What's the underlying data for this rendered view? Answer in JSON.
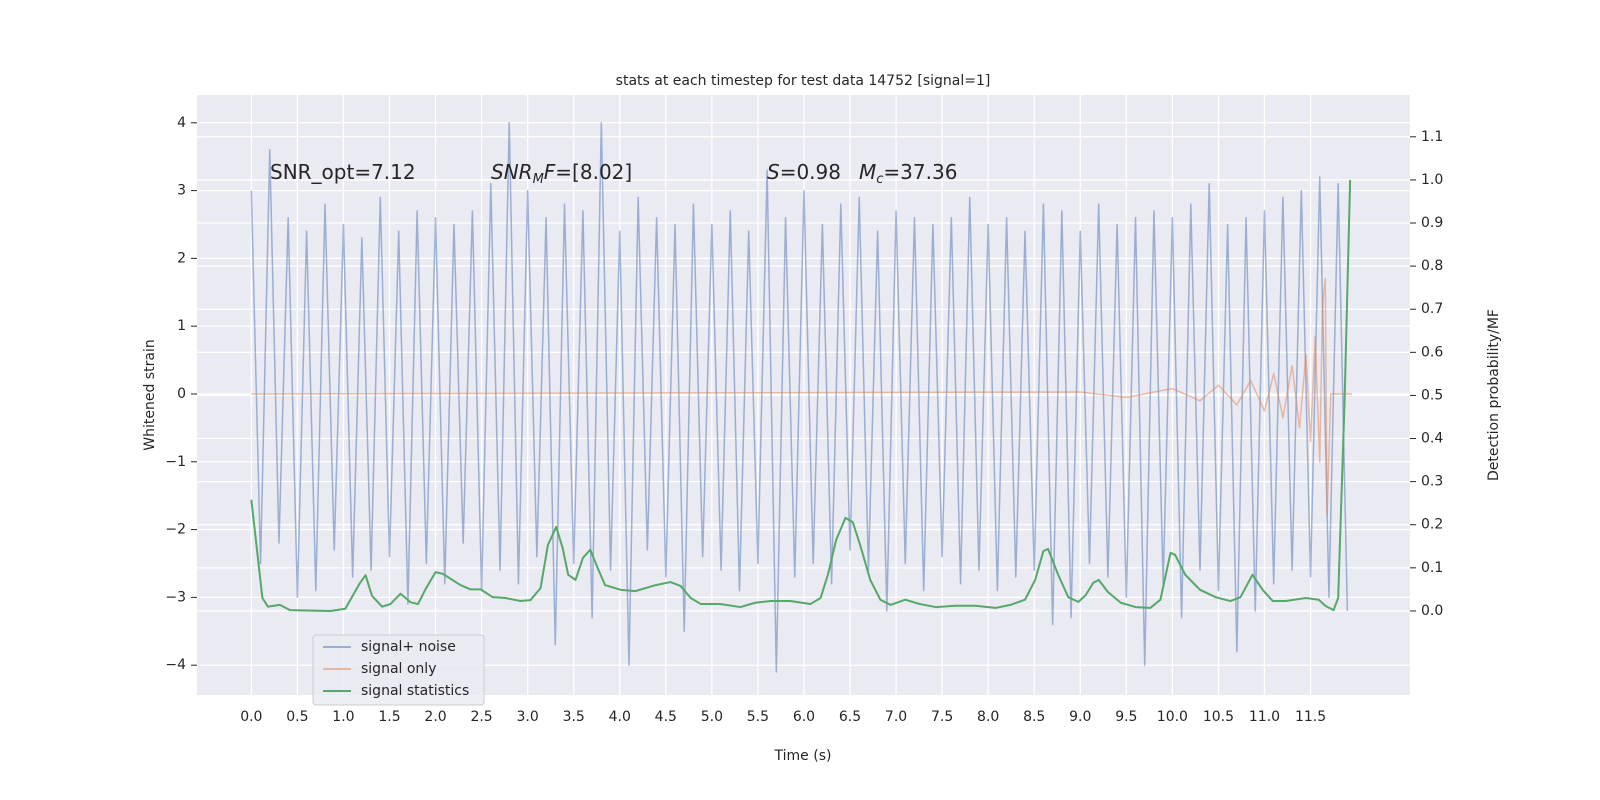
{
  "chart_data": {
    "type": "line",
    "title": "stats at each timestep for test data 14752 [signal=1]",
    "x_label": "Time (s)",
    "y_label": "Whitened strain",
    "y2_label": "Detection probability/MF",
    "grid": true,
    "legend": "lower left",
    "xlim": [
      -0.59,
      12.58
    ],
    "ylim": [
      -4.44,
      4.41
    ],
    "y2lim": [
      -0.195,
      1.197
    ],
    "xticks": [
      {
        "value": 0,
        "label": "0.0"
      },
      0.5,
      {
        "value": 1,
        "label": "1.0"
      },
      1.5,
      {
        "value": 2,
        "label": "2.0"
      },
      2.5,
      {
        "value": 3,
        "label": "3.0"
      },
      3.5,
      {
        "value": 4,
        "label": "4.0"
      },
      4.5,
      {
        "value": 5,
        "label": "5.0"
      },
      5.5,
      {
        "value": 6,
        "label": "6.0"
      },
      6.5,
      {
        "value": 7,
        "label": "7.0"
      },
      7.5,
      {
        "value": 8,
        "label": "8.0"
      },
      8.5,
      {
        "value": 9,
        "label": "9.0"
      },
      9.5,
      {
        "value": 10,
        "label": "10.0"
      },
      10.5,
      {
        "value": 11,
        "label": "11.0"
      },
      11.5
    ],
    "yticks": [
      {
        "value": -4,
        "label": "−4"
      },
      {
        "value": -3,
        "label": "−3"
      },
      {
        "value": -2,
        "label": "−2"
      },
      {
        "value": -1,
        "label": "−1"
      },
      0,
      1,
      2,
      3,
      4
    ],
    "y2ticks": [
      {
        "value": 0,
        "label": "0.0"
      },
      0.1,
      0.2,
      0.3,
      0.4,
      0.5,
      0.6,
      0.7,
      0.8,
      0.9,
      {
        "value": 1,
        "label": "1.0"
      },
      1.1
    ],
    "annotations": [
      [
        {
          "text": "SNR_opt=7.12"
        }
      ],
      [
        {
          "text": "SNR",
          "italic": true
        },
        {
          "text": "M",
          "italic": true,
          "sub": true
        },
        {
          "text": "F",
          "italic": true
        },
        {
          "text": "=[8.02]"
        }
      ],
      [
        {
          "text": "S",
          "italic": true
        },
        {
          "text": "=0.98"
        }
      ],
      [
        {
          "text": "M",
          "italic": true
        },
        {
          "text": "c",
          "italic": true,
          "sub": true
        },
        {
          "text": "=37.36"
        }
      ]
    ],
    "series": [
      {
        "name": "signal+ noise",
        "color": "#4c72b0",
        "opacity": 0.5,
        "x": [
          0.0,
          0.1,
          0.2,
          0.3,
          0.4,
          0.5,
          0.6,
          0.7,
          0.8,
          0.9,
          1.0,
          1.1,
          1.2,
          1.3,
          1.4,
          1.5,
          1.6,
          1.7,
          1.8,
          1.9,
          2.0,
          2.1,
          2.2,
          2.3,
          2.4,
          2.5,
          2.6,
          2.7,
          2.8,
          2.9,
          3.0,
          3.1,
          3.2,
          3.3,
          3.4,
          3.5,
          3.6,
          3.7,
          3.8,
          3.9,
          4.0,
          4.1,
          4.2,
          4.3,
          4.4,
          4.5,
          4.6,
          4.7,
          4.8,
          4.9,
          5.0,
          5.1,
          5.2,
          5.3,
          5.4,
          5.5,
          5.6,
          5.7,
          5.8,
          5.9,
          6.0,
          6.1,
          6.2,
          6.3,
          6.4,
          6.5,
          6.6,
          6.7,
          6.8,
          6.9,
          7.0,
          7.1,
          7.2,
          7.3,
          7.4,
          7.5,
          7.6,
          7.7,
          7.8,
          7.9,
          8.0,
          8.1,
          8.2,
          8.3,
          8.4,
          8.5,
          8.6,
          8.7,
          8.8,
          8.9,
          9.0,
          9.1,
          9.2,
          9.3,
          9.4,
          9.5,
          9.6,
          9.7,
          9.8,
          9.9,
          10.0,
          10.1,
          10.2,
          10.3,
          10.4,
          10.5,
          10.6,
          10.7,
          10.8,
          10.9,
          11.0,
          11.1,
          11.2,
          11.3,
          11.4,
          11.5,
          11.6,
          11.7,
          11.8,
          11.9
        ],
        "values": [
          3.0,
          -2.5,
          3.6,
          -2.2,
          2.6,
          -3.0,
          2.4,
          -2.9,
          2.8,
          -2.3,
          2.5,
          -2.7,
          2.3,
          -2.6,
          2.9,
          -2.4,
          2.4,
          -3.1,
          2.7,
          -2.5,
          2.6,
          -2.8,
          2.5,
          -2.2,
          2.7,
          -2.9,
          3.1,
          -2.6,
          4.0,
          -2.8,
          3.0,
          -2.4,
          2.6,
          -3.7,
          2.8,
          -2.5,
          2.7,
          -3.3,
          4.0,
          -2.6,
          2.4,
          -4.0,
          2.9,
          -2.3,
          2.6,
          -2.7,
          2.5,
          -3.5,
          2.8,
          -2.4,
          2.5,
          -2.6,
          2.7,
          -2.9,
          2.4,
          -2.5,
          3.3,
          -4.1,
          2.6,
          -2.7,
          3.0,
          -2.5,
          2.5,
          -2.8,
          2.8,
          -2.3,
          2.9,
          -2.6,
          2.4,
          -3.2,
          2.7,
          -2.5,
          2.6,
          -2.9,
          2.5,
          -2.4,
          2.6,
          -2.8,
          2.9,
          -2.6,
          2.5,
          -2.9,
          2.6,
          -2.7,
          2.4,
          -2.6,
          2.8,
          -3.4,
          2.7,
          -3.3,
          2.4,
          -2.5,
          2.8,
          -2.7,
          2.5,
          -3.0,
          2.6,
          -4.0,
          2.7,
          -2.8,
          2.6,
          -3.3,
          2.8,
          -2.6,
          3.1,
          -2.9,
          2.5,
          -3.8,
          2.6,
          -3.2,
          2.7,
          -2.8,
          2.9,
          -2.6,
          3.0,
          -2.7,
          3.2,
          -3.0,
          3.1,
          -3.2
        ]
      },
      {
        "name": "signal only",
        "color": "#dd8452",
        "opacity": 0.5,
        "x": [
          0,
          9.0,
          9.5,
          10.0,
          10.3,
          10.5,
          10.7,
          10.85,
          11.0,
          11.1,
          11.2,
          11.3,
          11.38,
          11.45,
          11.5,
          11.55,
          11.6,
          11.63,
          11.66,
          11.68,
          11.72,
          11.8,
          11.95
        ],
        "values": [
          0,
          0.03,
          -0.05,
          0.08,
          -0.1,
          0.13,
          -0.16,
          0.2,
          -0.25,
          0.3,
          -0.35,
          0.42,
          -0.5,
          0.58,
          -0.7,
          0.85,
          -1.0,
          1.3,
          1.7,
          -1.8,
          0,
          0,
          0
        ]
      },
      {
        "name": "signal statistics",
        "color": "#55a868",
        "opacity": 1,
        "axis": "y2",
        "x": [
          0,
          0.12,
          0.18,
          0.31,
          0.42,
          0.86,
          1.02,
          1.18,
          1.24,
          1.31,
          1.42,
          1.51,
          1.62,
          1.73,
          1.81,
          1.89,
          2.0,
          2.08,
          2.27,
          2.38,
          2.49,
          2.62,
          2.76,
          2.92,
          3.03,
          3.14,
          3.22,
          3.31,
          3.38,
          3.44,
          3.52,
          3.6,
          3.68,
          3.76,
          3.84,
          4.01,
          4.17,
          4.39,
          4.55,
          4.66,
          4.77,
          4.88,
          5.09,
          5.31,
          5.47,
          5.64,
          5.85,
          6.07,
          6.18,
          6.26,
          6.35,
          6.45,
          6.53,
          6.61,
          6.72,
          6.83,
          6.94,
          7.1,
          7.26,
          7.43,
          7.64,
          7.86,
          8.08,
          8.24,
          8.4,
          8.51,
          8.6,
          8.65,
          8.76,
          8.87,
          8.98,
          9.06,
          9.14,
          9.2,
          9.3,
          9.44,
          9.6,
          9.76,
          9.87,
          9.98,
          10.03,
          10.14,
          10.3,
          10.47,
          10.63,
          10.74,
          10.87,
          10.98,
          11.09,
          11.23,
          11.45,
          11.59,
          11.66,
          11.75,
          11.8,
          11.87,
          11.93
        ],
        "values": [
          0.258,
          0.03,
          0.01,
          0.014,
          0.002,
          0,
          0.005,
          0.065,
          0.083,
          0.035,
          0.01,
          0.016,
          0.04,
          0.02,
          0.016,
          0.05,
          0.09,
          0.086,
          0.06,
          0.05,
          0.05,
          0.032,
          0.03,
          0.023,
          0.025,
          0.053,
          0.153,
          0.195,
          0.146,
          0.084,
          0.072,
          0.123,
          0.142,
          0.1,
          0.06,
          0.049,
          0.046,
          0.06,
          0.067,
          0.058,
          0.03,
          0.016,
          0.016,
          0.009,
          0.019,
          0.023,
          0.023,
          0.016,
          0.03,
          0.084,
          0.165,
          0.216,
          0.206,
          0.153,
          0.072,
          0.026,
          0.014,
          0.026,
          0.016,
          0.009,
          0.012,
          0.012,
          0.007,
          0.014,
          0.026,
          0.072,
          0.139,
          0.144,
          0.084,
          0.032,
          0.021,
          0.037,
          0.065,
          0.072,
          0.044,
          0.019,
          0.009,
          0.007,
          0.026,
          0.135,
          0.13,
          0.084,
          0.049,
          0.032,
          0.023,
          0.032,
          0.084,
          0.049,
          0.023,
          0.023,
          0.03,
          0.026,
          0.012,
          0.002,
          0.03,
          0.49,
          1.0
        ]
      }
    ]
  }
}
